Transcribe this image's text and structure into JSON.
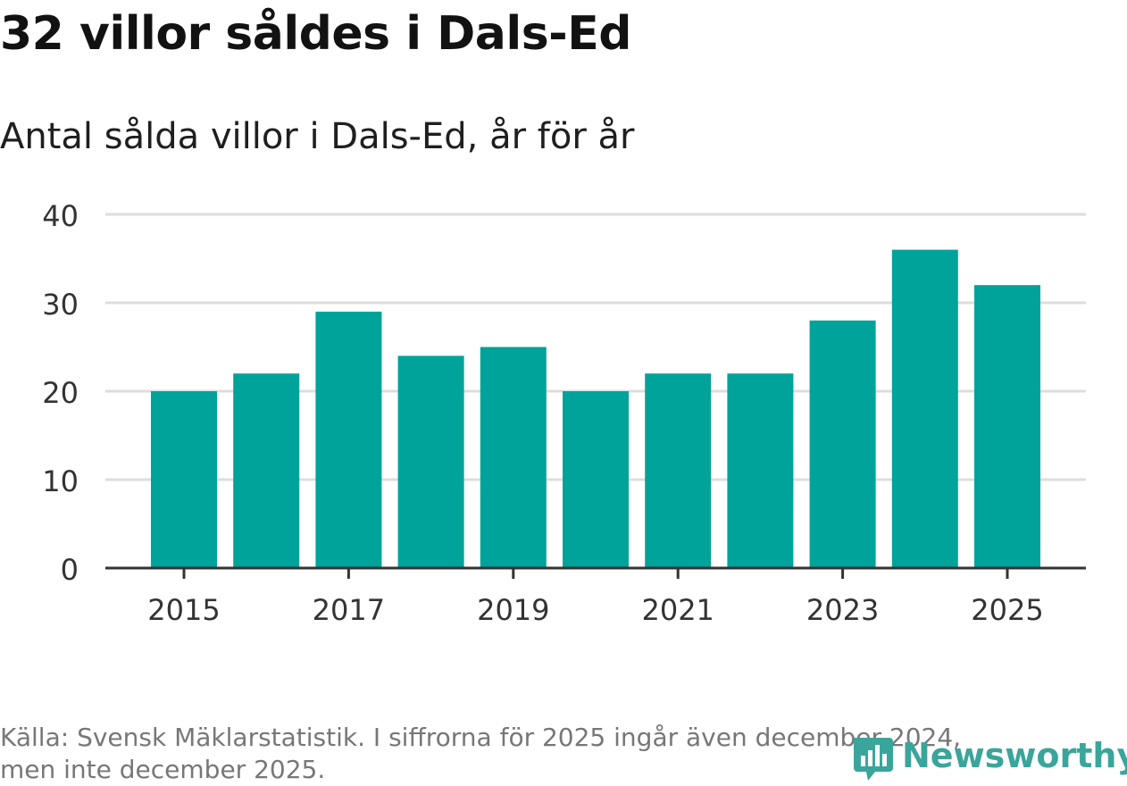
{
  "header": {
    "title": "32 villor såldes i Dals-Ed",
    "subtitle": "Antal sålda villor i Dals-Ed, år för år"
  },
  "footer": {
    "source_line1": "Källa: Svensk Mäklarstatistik. I siffrorna för 2025 ingår även december 2024,",
    "source_line2": "men inte december 2025."
  },
  "logo": {
    "text": "Newsworthy",
    "icon": "newsworthy-logo-icon",
    "color": "#3aa59b"
  },
  "colors": {
    "bar": "#00a39a",
    "grid": "#dddddd",
    "axis": "#333333"
  },
  "chart_data": {
    "type": "bar",
    "title": "Antal sålda villor i Dals-Ed, år för år",
    "xlabel": "",
    "ylabel": "",
    "categories": [
      "2015",
      "2016",
      "2017",
      "2018",
      "2019",
      "2020",
      "2021",
      "2022",
      "2023",
      "2024",
      "2025"
    ],
    "values": [
      20,
      22,
      29,
      24,
      25,
      20,
      22,
      22,
      28,
      36,
      32
    ],
    "x_tick_labels": [
      "2015",
      "2017",
      "2019",
      "2021",
      "2023",
      "2025"
    ],
    "y_ticks": [
      0,
      10,
      20,
      30,
      40
    ],
    "ylim": [
      0,
      40
    ],
    "grid": true
  }
}
